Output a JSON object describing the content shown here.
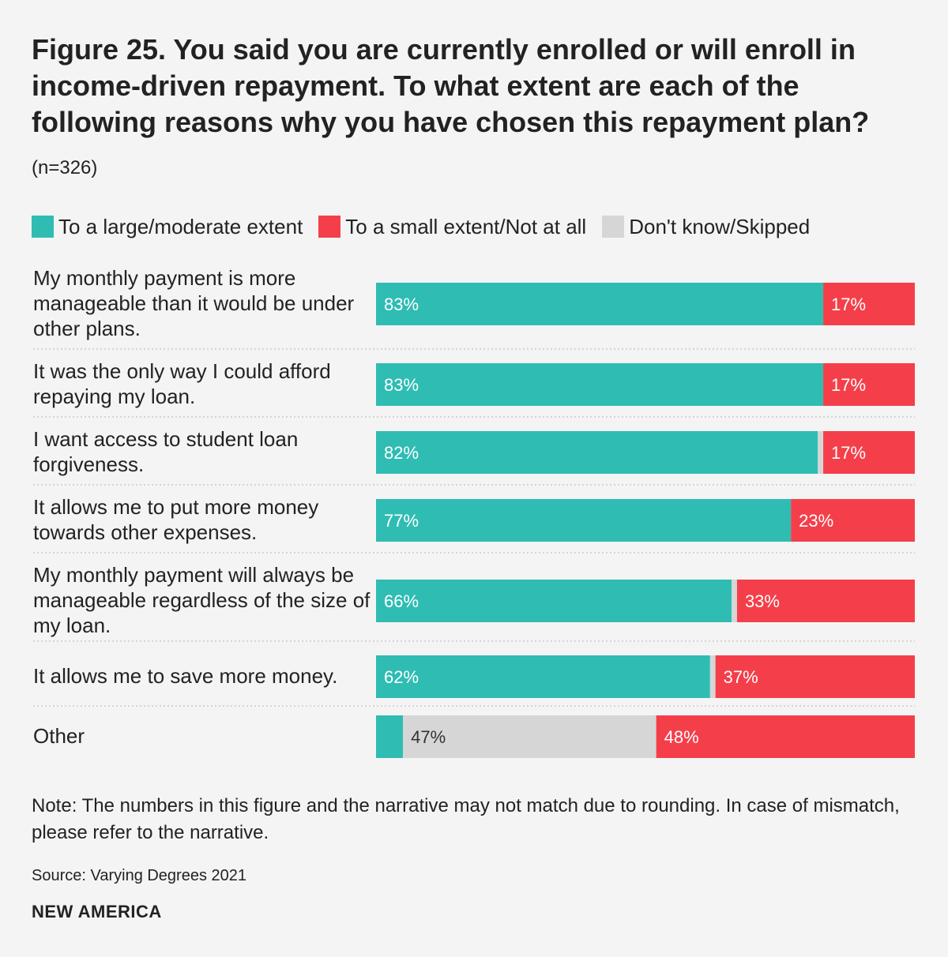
{
  "chart_data": {
    "type": "bar",
    "orientation": "horizontal-stacked",
    "title": "Figure 25. You said you are currently enrolled or will enroll in income-driven repayment. To what extent are each of the following reasons why you have chosen this repayment plan?",
    "subtitle": "(n=326)",
    "categories": [
      "My monthly payment is more manageable than it would be under other plans.",
      "It was the only way I could afford repaying my loan.",
      "I want access to student loan forgiveness.",
      "It allows me to put more money towards other expenses.",
      "My monthly payment will always be manageable regardless of the size of my loan.",
      "It allows me to save more money.",
      "Other"
    ],
    "series": [
      {
        "name": "To a large/moderate extent",
        "color": "#2fbcb3",
        "values": [
          83,
          83,
          82,
          77,
          66,
          62,
          5
        ],
        "labels": [
          "83%",
          "83%",
          "82%",
          "77%",
          "66%",
          "62%",
          ""
        ]
      },
      {
        "name": "Don't know/Skipped",
        "color": "#d6d6d6",
        "values": [
          0,
          0,
          1,
          0,
          1,
          1,
          47
        ],
        "labels": [
          "",
          "",
          "",
          "",
          "",
          "",
          "47%"
        ]
      },
      {
        "name": "To a small extent/Not at all",
        "color": "#f43f4a",
        "values": [
          17,
          17,
          17,
          23,
          33,
          37,
          48
        ],
        "labels": [
          "17%",
          "17%",
          "17%",
          "23%",
          "33%",
          "37%",
          "48%"
        ]
      }
    ],
    "legend_order": [
      0,
      2,
      1
    ],
    "xlim": [
      0,
      100
    ]
  },
  "note": "Note: The numbers in this figure and the narrative may not match due to rounding. In case of mismatch, please refer to the narrative.",
  "source": "Source: Varying Degrees 2021",
  "brand": "NEW AMERICA"
}
